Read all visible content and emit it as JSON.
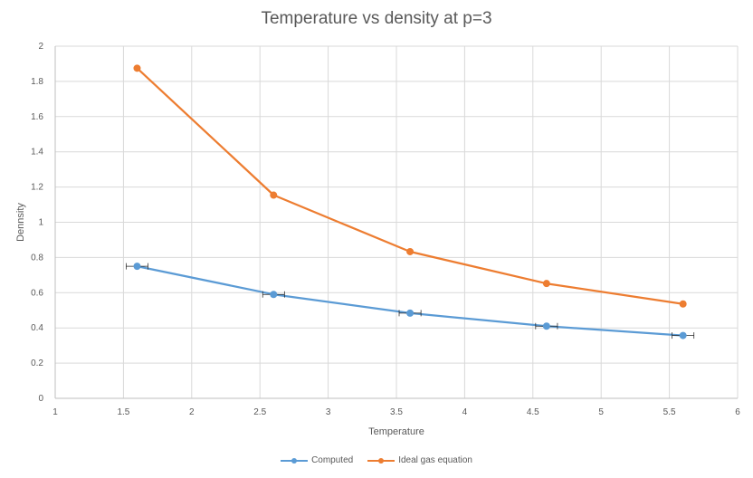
{
  "chart_data": {
    "type": "line",
    "title": "Temperature vs density at p=3",
    "xlabel": "Temperature",
    "ylabel": "Dennsity",
    "xlim": [
      1,
      6
    ],
    "ylim": [
      0,
      2
    ],
    "x_ticks": [
      "1",
      "1.5",
      "2",
      "2.5",
      "3",
      "3.5",
      "4",
      "4.5",
      "5",
      "5.5",
      "6"
    ],
    "y_ticks": [
      "0",
      "0.2",
      "0.4",
      "0.6",
      "0.8",
      "1",
      "1.2",
      "1.4",
      "1.6",
      "1.8",
      "2"
    ],
    "grid": true,
    "legend_position": "bottom",
    "series": [
      {
        "name": "Computed",
        "color": "#5b9bd5",
        "x": [
          1.6,
          2.6,
          3.6,
          4.6,
          5.6
        ],
        "y": [
          0.75,
          0.59,
          0.484,
          0.41,
          0.357
        ],
        "x_error": [
          0.08,
          0.08,
          0.08,
          0.08,
          0.08
        ]
      },
      {
        "name": "Ideal gas equation",
        "color": "#ed7d31",
        "x": [
          1.6,
          2.6,
          3.6,
          4.6,
          5.6
        ],
        "y": [
          1.875,
          1.154,
          0.833,
          0.652,
          0.536
        ]
      }
    ]
  }
}
